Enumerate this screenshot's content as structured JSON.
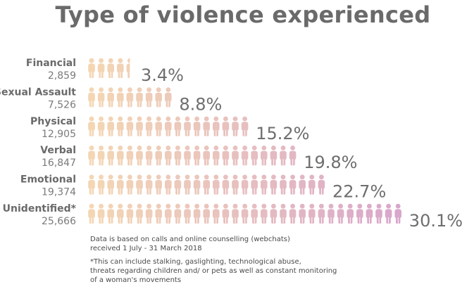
{
  "title": "Type of violence experienced",
  "notes": {
    "line1": "Data is based on calls and online counselling (webchats)",
    "line2": "received 1 July - 31 March 2018",
    "footnote1": "*This can include stalking, gaslighting, technological abuse,",
    "footnote2": "threats regarding children and/ or pets as well as constant monitoring",
    "footnote3": "of a woman's movements"
  },
  "chart_data": {
    "type": "bar",
    "title": "Type of violence experienced",
    "orientation": "horizontal",
    "categories": [
      "Financial",
      "Sexual Assault",
      "Physical",
      "Verbal",
      "Emotional",
      "Unidentified*"
    ],
    "counts": [
      "2,859",
      "7,526",
      "12,905",
      "16,847",
      "19,374",
      "25,666"
    ],
    "percent_labels": [
      "3.4%",
      "8.8%",
      "15.2%",
      "19.8%",
      "22.7%",
      "30.1%"
    ],
    "values": [
      3.4,
      8.8,
      15.2,
      19.8,
      22.7,
      30.1
    ],
    "icon_counts": [
      4.5,
      9,
      17,
      22,
      25,
      33
    ],
    "colors": {
      "gradient_start": "#f4d6b3",
      "gradient_end": "#d9a7cb",
      "text": "#6a6a6a"
    },
    "icon": "person-icon",
    "grid": false,
    "legend": "none"
  }
}
